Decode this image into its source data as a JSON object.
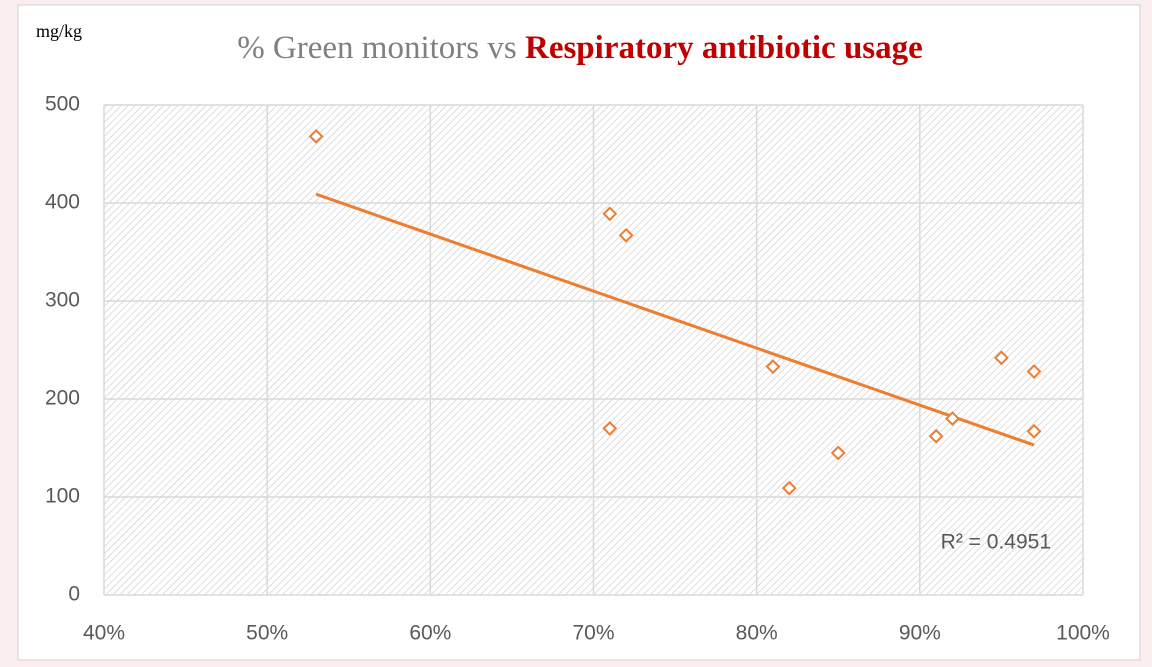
{
  "chart_data": {
    "type": "scatter",
    "title": "% Green monitors vs",
    "title_highlight": "Respiratory antibiotic usage",
    "y_label": "mg/kg",
    "annotation": "R² = 0.4951",
    "color": "#ed7d31",
    "x": [
      53,
      71,
      72,
      81,
      71,
      82,
      85,
      91,
      92,
      95,
      97,
      97
    ],
    "values": [
      468,
      389,
      367,
      233,
      170,
      109,
      145,
      162,
      180,
      242,
      228,
      167
    ],
    "trendline": {
      "x": [
        53,
        97
      ],
      "values": [
        409,
        153
      ]
    },
    "xlim": [
      40,
      100
    ],
    "xticks": [
      {
        "value": 40,
        "label": "40%"
      },
      {
        "value": 50,
        "label": "50%"
      },
      {
        "value": 60,
        "label": "60%"
      },
      {
        "value": 70,
        "label": "70%"
      },
      {
        "value": 80,
        "label": "80%"
      },
      {
        "value": 90,
        "label": "90%"
      },
      {
        "value": 100,
        "label": "100%"
      }
    ],
    "ylim": [
      0,
      500
    ],
    "yticks": [
      0,
      100,
      200,
      300,
      400,
      500
    ],
    "grid": true
  }
}
